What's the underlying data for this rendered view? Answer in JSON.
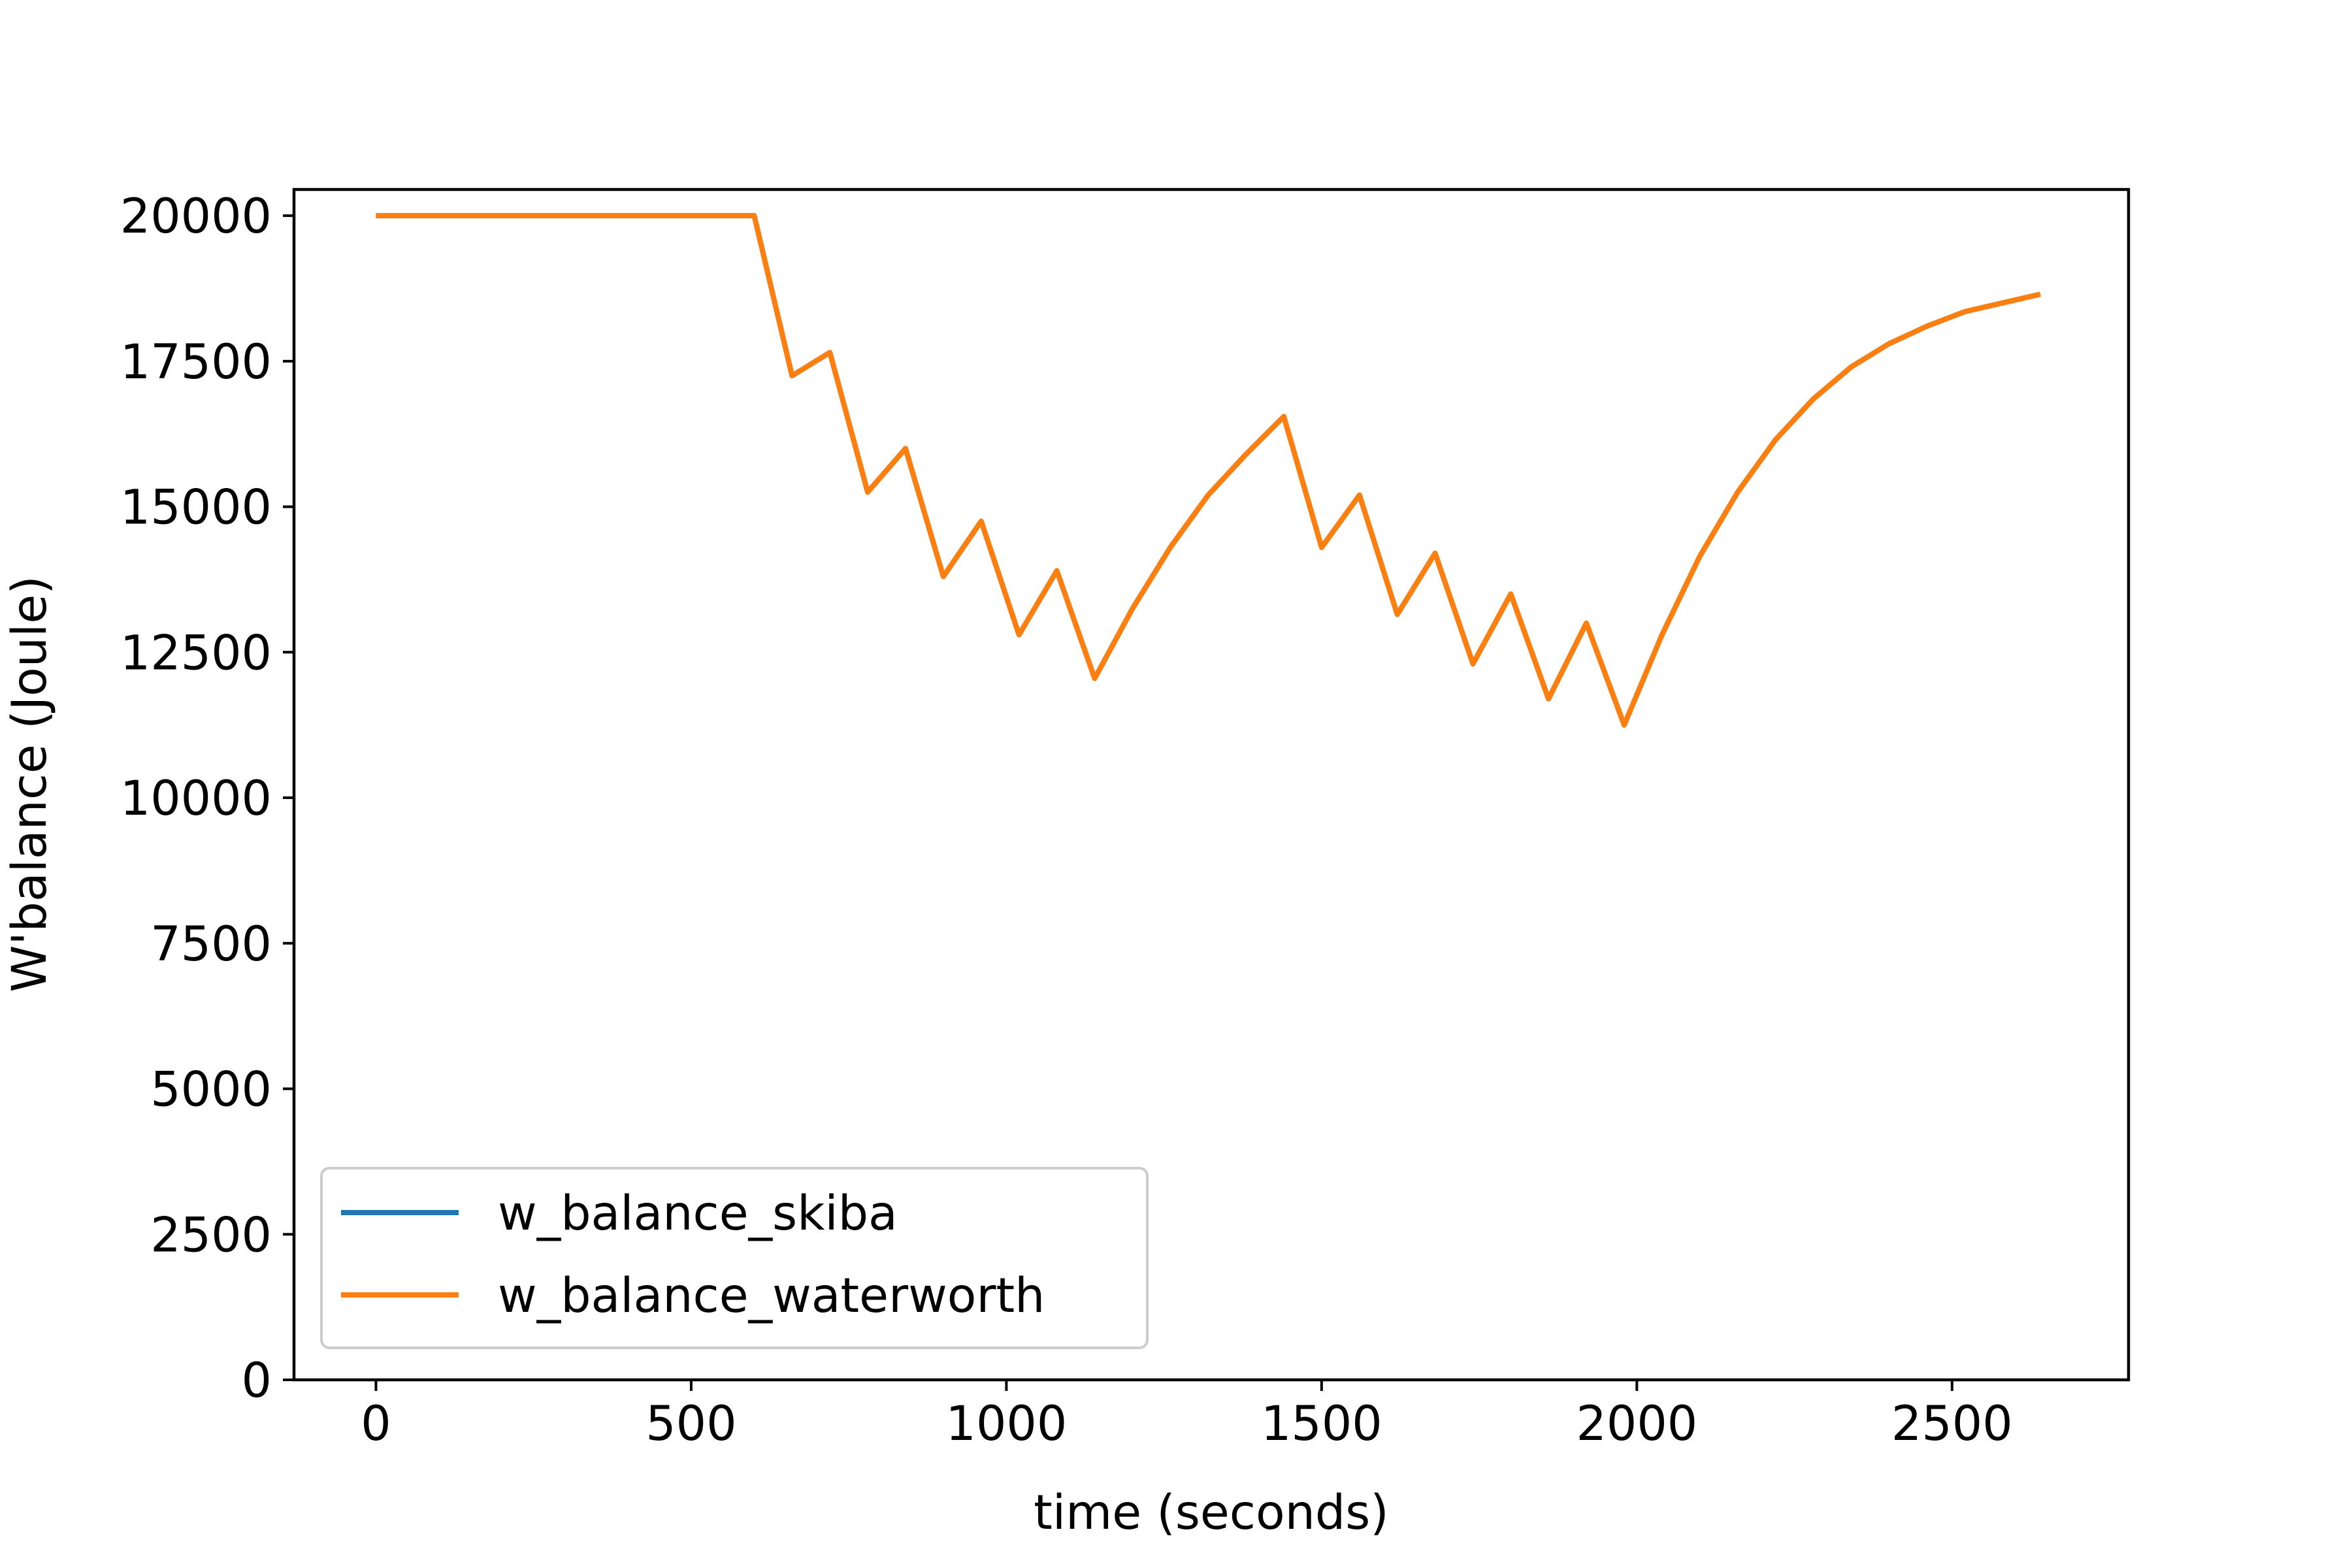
{
  "chart_data": {
    "type": "line",
    "title": "",
    "xlabel": "time (seconds)",
    "ylabel": "W'balance (Joule)",
    "xlim": [
      -130,
      2780
    ],
    "ylim": [
      0,
      20450
    ],
    "x_ticks": [
      0,
      500,
      1000,
      1500,
      2000,
      2500
    ],
    "y_ticks": [
      0,
      2500,
      5000,
      7500,
      10000,
      12500,
      15000,
      17500,
      20000
    ],
    "grid": false,
    "legend_position": "lower-left",
    "series": [
      {
        "name": "w_balance_skiba",
        "color": "#1f77b4",
        "x": [
          0,
          600,
          660,
          720,
          780,
          840,
          900,
          960,
          1020,
          1080,
          1140,
          1200,
          1260,
          1320,
          1380,
          1440,
          1500,
          1560,
          1620,
          1680,
          1740,
          1800,
          1860,
          1920,
          1980,
          2040,
          2100,
          2160,
          2220,
          2280,
          2340,
          2400,
          2460,
          2520,
          2580,
          2640
        ],
        "y": [
          20000,
          20000,
          17250,
          17650,
          15250,
          16000,
          13800,
          14750,
          12800,
          13900,
          12050,
          13250,
          14300,
          15200,
          15900,
          16550,
          14300,
          15200,
          13150,
          14200,
          12300,
          13500,
          11700,
          13000,
          11250,
          12800,
          14150,
          15250,
          16150,
          16850,
          17400,
          17800,
          18100,
          18350,
          18500,
          18650
        ]
      },
      {
        "name": "w_balance_waterworth",
        "color": "#ff7f0e",
        "x": [
          0,
          600,
          660,
          720,
          780,
          840,
          900,
          960,
          1020,
          1080,
          1140,
          1200,
          1260,
          1320,
          1380,
          1440,
          1500,
          1560,
          1620,
          1680,
          1740,
          1800,
          1860,
          1920,
          1980,
          2040,
          2100,
          2160,
          2220,
          2280,
          2340,
          2400,
          2460,
          2520,
          2580,
          2640
        ],
        "y": [
          20000,
          20000,
          17250,
          17650,
          15250,
          16000,
          13800,
          14750,
          12800,
          13900,
          12050,
          13250,
          14300,
          15200,
          15900,
          16550,
          14300,
          15200,
          13150,
          14200,
          12300,
          13500,
          11700,
          13000,
          11250,
          12800,
          14150,
          15250,
          16150,
          16850,
          17400,
          17800,
          18100,
          18350,
          18500,
          18650
        ]
      }
    ]
  }
}
